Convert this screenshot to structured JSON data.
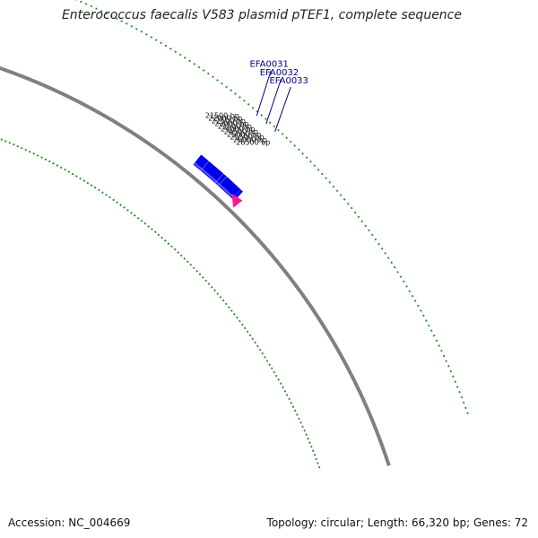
{
  "title": "Enterococcus faecalis V583 plasmid pTEF1, complete sequence",
  "accession": "Accession: NC_004669",
  "summary": "Topology: circular; Length: 66,320 bp; Genes: 72",
  "colors": {
    "feature": "#0000ee",
    "feature_light": "#8080ff",
    "backbone": "#808080",
    "ticks": "#228b22",
    "gene_label": "#00008b",
    "highlight": "#ff1493"
  },
  "ticks": [
    {
      "bp": 21500,
      "label": "21500 bp"
    },
    {
      "bp": 22000,
      "label": "22000 bp"
    },
    {
      "bp": 22500,
      "label": "22500 bp"
    },
    {
      "bp": 23000,
      "label": "23000 bp"
    },
    {
      "bp": 23500,
      "label": "23500 bp"
    },
    {
      "bp": 24000,
      "label": "24000 bp"
    },
    {
      "bp": 24500,
      "label": "24500 bp"
    },
    {
      "bp": 25000,
      "label": "25000 bp"
    },
    {
      "bp": 25500,
      "label": "25500 bp"
    },
    {
      "bp": 26000,
      "label": "26000 bp"
    },
    {
      "bp": 26500,
      "label": "26500 bp"
    }
  ],
  "genes": [
    {
      "label": "EFA0031",
      "bp": 23150
    },
    {
      "label": "EFA0032",
      "bp": 24650
    },
    {
      "label": "EFA0033",
      "bp": 26080
    }
  ],
  "features": [
    {
      "start": 20900,
      "end": 22200
    },
    {
      "start": 22230,
      "end": 24760
    },
    {
      "start": 24790,
      "end": 25320
    },
    {
      "start": 25350,
      "end": 27880
    },
    {
      "start": 27910,
      "end": 28300
    }
  ]
}
